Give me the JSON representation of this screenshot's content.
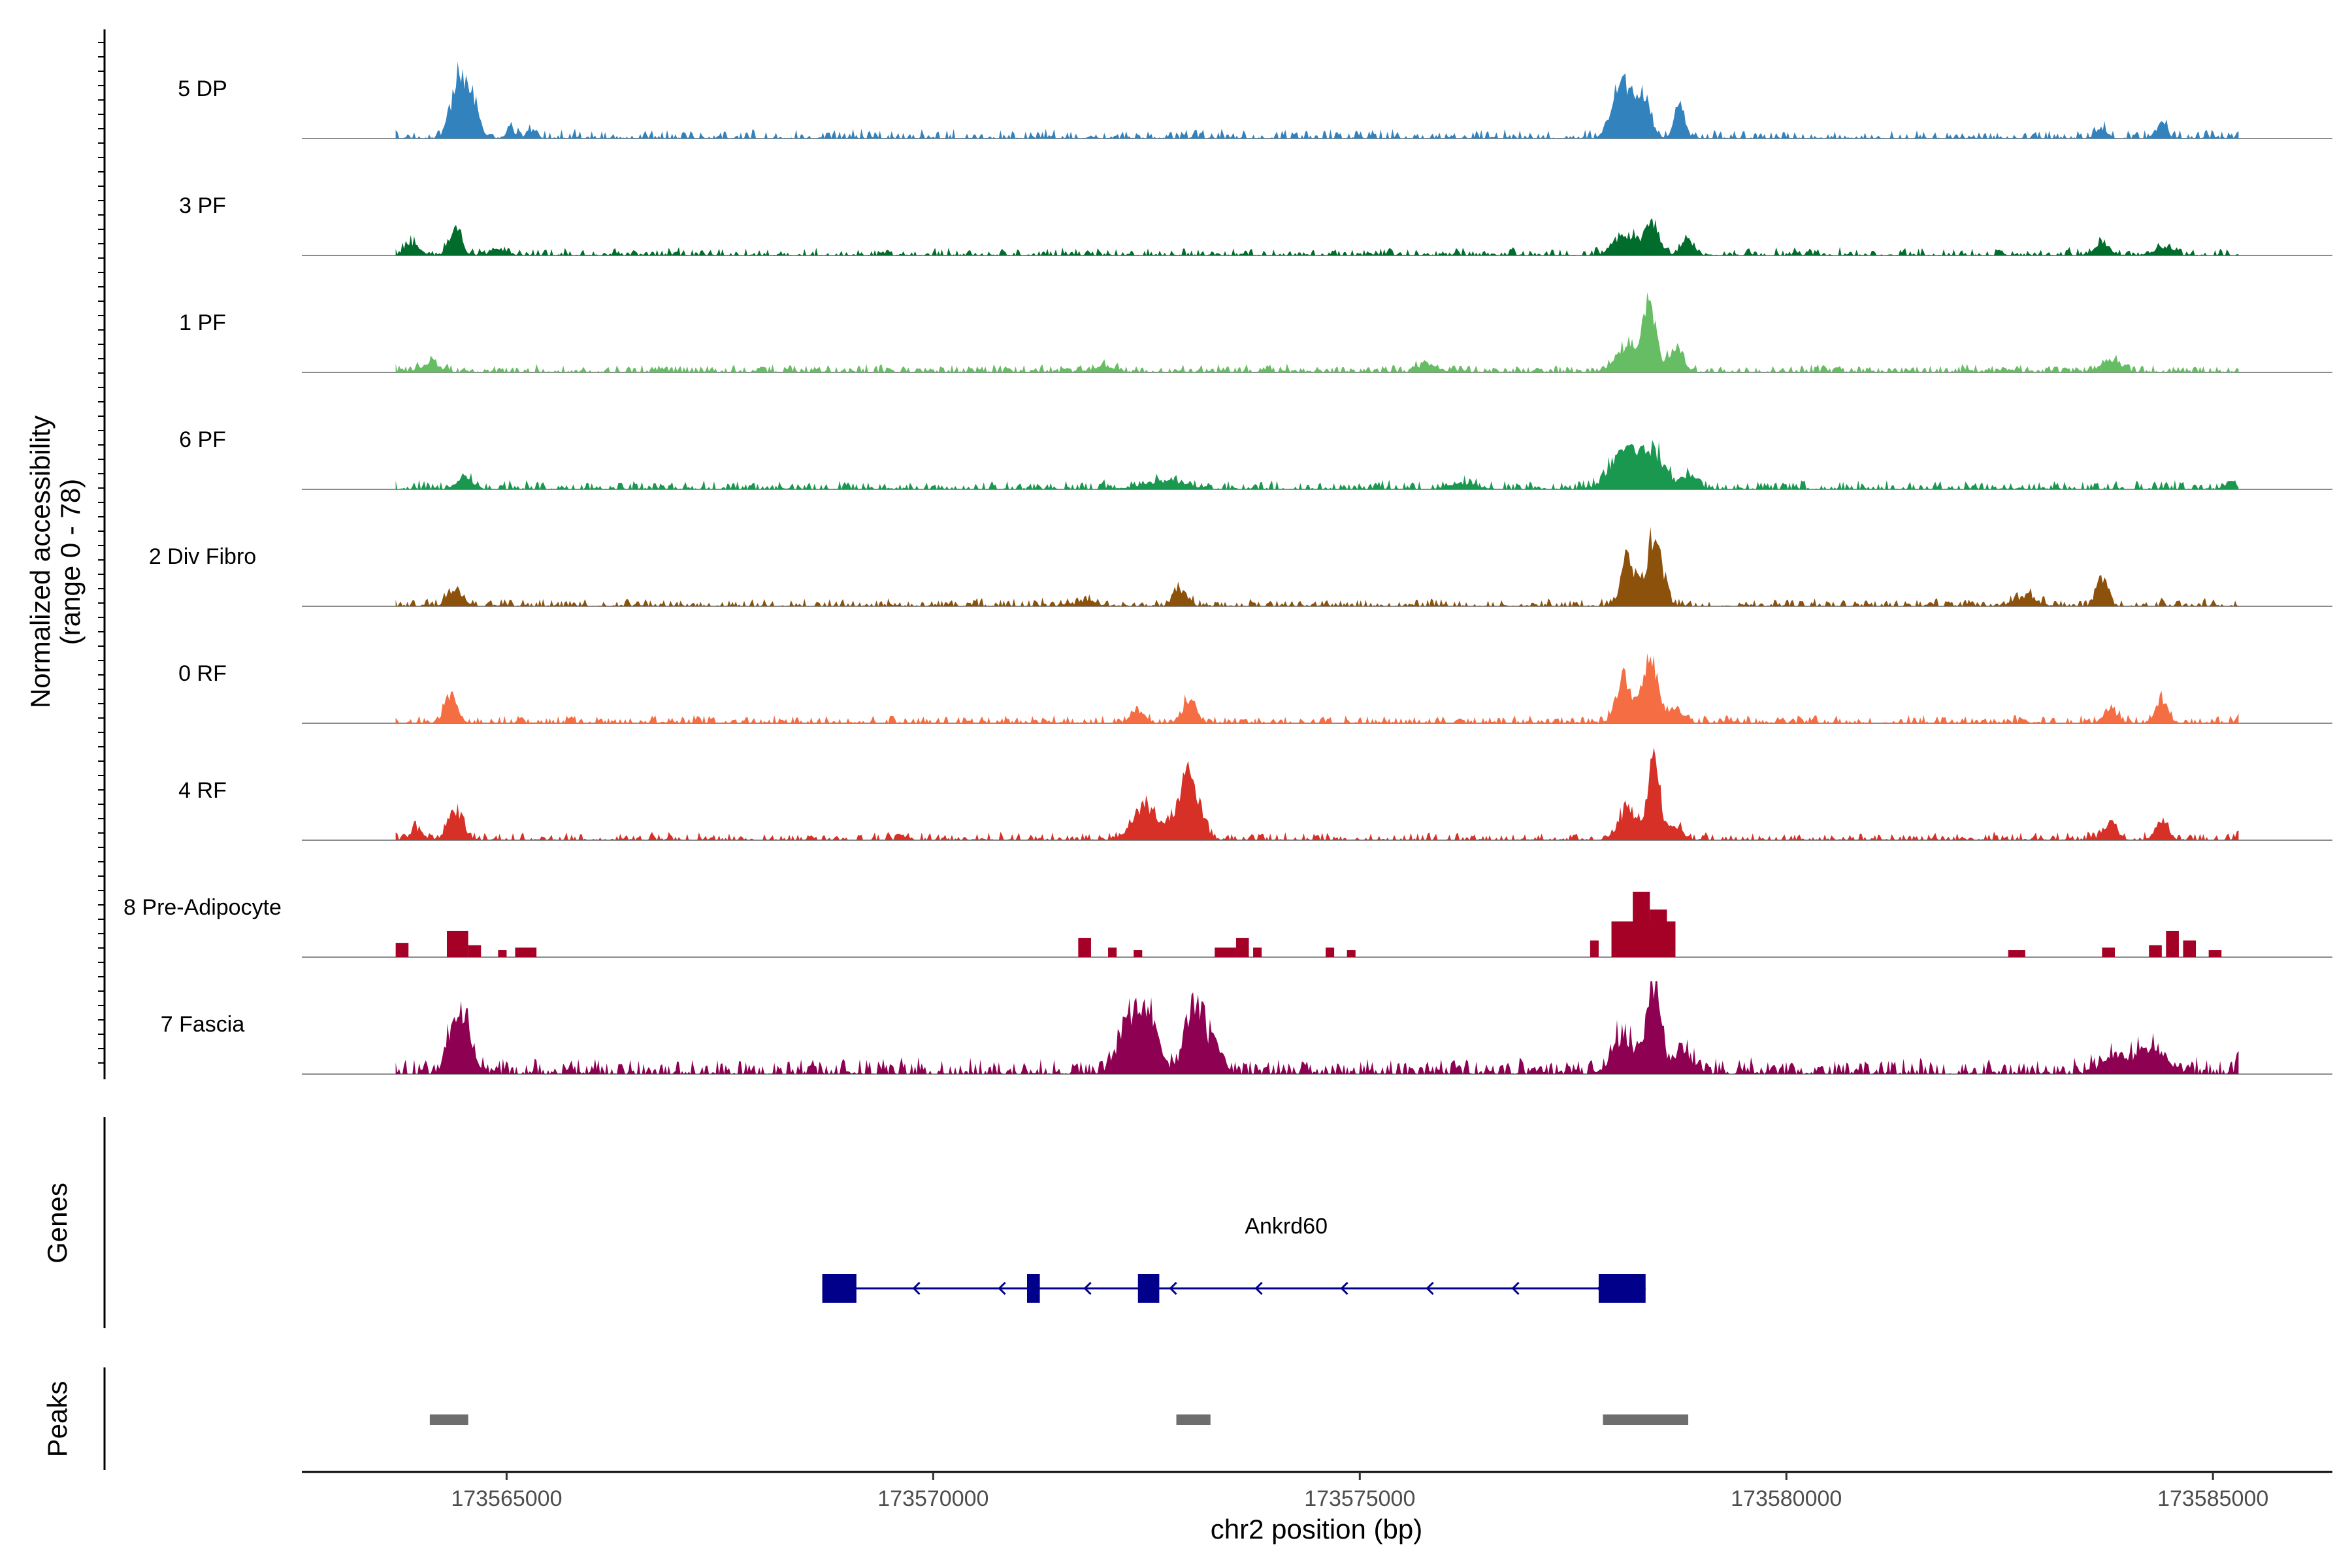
{
  "chart_data": {
    "type": "area",
    "title": "",
    "ylabel_line1": "Normalized accessibility",
    "ylabel_line2": "(range 0 - 78)",
    "y_range": [
      0,
      78
    ],
    "xlabel": "chr2 position (bp)",
    "xlim": [
      173562600,
      173586400
    ],
    "x_ticks": [
      173565000,
      173570000,
      173575000,
      173580000,
      173585000
    ],
    "x_tick_labels": [
      "173565000",
      "173570000",
      "173575000",
      "173580000",
      "173585000"
    ],
    "data_extent": [
      173563700,
      173585300
    ],
    "tracks": [
      {
        "name": "5 DP",
        "color": "#3182bd",
        "baseline": 1,
        "noise": 6,
        "peaks": [
          [
            173564440,
            50,
            90
          ],
          [
            173564600,
            28,
            80
          ],
          [
            173565050,
            5,
            60
          ],
          [
            173565300,
            5,
            60
          ],
          [
            173578050,
            50,
            100
          ],
          [
            173578300,
            38,
            90
          ],
          [
            173578750,
            30,
            60
          ],
          [
            173583700,
            9,
            60
          ],
          [
            173584400,
            12,
            60
          ]
        ]
      },
      {
        "name": "3 PF",
        "color": "#006d2c",
        "baseline": 1,
        "noise": 5,
        "peaks": [
          [
            173563900,
            10,
            80
          ],
          [
            173564400,
            22,
            70
          ],
          [
            173564900,
            6,
            80
          ],
          [
            173578100,
            18,
            120
          ],
          [
            173578420,
            24,
            90
          ],
          [
            173578850,
            14,
            70
          ],
          [
            173583700,
            10,
            90
          ],
          [
            173584400,
            7,
            90
          ]
        ]
      },
      {
        "name": "1 PF",
        "color": "#66bd63",
        "baseline": 2,
        "noise": 4,
        "peaks": [
          [
            173564100,
            7,
            120
          ],
          [
            173578400,
            58,
            70
          ],
          [
            173578150,
            22,
            140
          ],
          [
            173578700,
            18,
            90
          ],
          [
            173583800,
            8,
            120
          ],
          [
            173572000,
            5,
            120
          ],
          [
            173575800,
            6,
            120
          ]
        ]
      },
      {
        "name": "6 PF",
        "color": "#1a9850",
        "baseline": 1,
        "noise": 6,
        "peaks": [
          [
            173564500,
            10,
            90
          ],
          [
            173578100,
            35,
            160
          ],
          [
            173578450,
            30,
            120
          ],
          [
            173578850,
            12,
            100
          ],
          [
            173572700,
            6,
            250
          ],
          [
            173576200,
            5,
            150
          ],
          [
            173585200,
            6,
            60
          ]
        ]
      },
      {
        "name": "2 Div Fibro",
        "color": "#8c510a",
        "baseline": 1,
        "noise": 5,
        "peaks": [
          [
            173564400,
            16,
            80
          ],
          [
            173578450,
            62,
            90
          ],
          [
            173578150,
            40,
            80
          ],
          [
            173572900,
            14,
            80
          ],
          [
            173583700,
            24,
            60
          ],
          [
            173582800,
            8,
            120
          ],
          [
            173571800,
            5,
            100
          ]
        ]
      },
      {
        "name": "0 RF",
        "color": "#f46d43",
        "baseline": 1,
        "noise": 5,
        "peaks": [
          [
            173564350,
            20,
            80
          ],
          [
            173578400,
            60,
            80
          ],
          [
            173578100,
            36,
            90
          ],
          [
            173578700,
            12,
            90
          ],
          [
            173572400,
            10,
            80
          ],
          [
            173573000,
            18,
            80
          ],
          [
            173584400,
            18,
            70
          ],
          [
            173583800,
            10,
            80
          ],
          [
            173585300,
            8,
            25
          ]
        ]
      },
      {
        "name": "4 RF",
        "color": "#d73027",
        "baseline": 1,
        "noise": 5,
        "peaks": [
          [
            173564400,
            24,
            90
          ],
          [
            173563950,
            8,
            80
          ],
          [
            173573000,
            55,
            120
          ],
          [
            173572500,
            28,
            150
          ],
          [
            173578450,
            80,
            65
          ],
          [
            173578150,
            28,
            110
          ],
          [
            173578700,
            12,
            80
          ],
          [
            173583800,
            14,
            80
          ],
          [
            173584400,
            16,
            70
          ],
          [
            173585300,
            8,
            25
          ]
        ]
      },
      {
        "name": "8 Pre-Adipocyte",
        "color": "#a50026",
        "baseline": 0,
        "noise": 0,
        "bars": [
          [
            173563700,
            173563850,
            12
          ],
          [
            173564300,
            173564550,
            22
          ],
          [
            173564550,
            173564700,
            10
          ],
          [
            173564900,
            173565000,
            6
          ],
          [
            173565100,
            173565350,
            8
          ],
          [
            173571700,
            173571850,
            16
          ],
          [
            173572050,
            173572150,
            8
          ],
          [
            173572350,
            173572450,
            6
          ],
          [
            173573300,
            173573550,
            8
          ],
          [
            173573550,
            173573700,
            16
          ],
          [
            173573750,
            173573850,
            8
          ],
          [
            173574600,
            173574700,
            8
          ],
          [
            173574850,
            173574950,
            6
          ],
          [
            173577700,
            173577800,
            14
          ],
          [
            173577950,
            173578700,
            30
          ],
          [
            173578200,
            173578400,
            55
          ],
          [
            173578400,
            173578600,
            40
          ],
          [
            173582600,
            173582800,
            6
          ],
          [
            173583700,
            173583850,
            8
          ],
          [
            173584250,
            173584400,
            10
          ],
          [
            173584450,
            173584600,
            22
          ],
          [
            173584650,
            173584800,
            14
          ],
          [
            173584950,
            173585100,
            6
          ]
        ]
      },
      {
        "name": "7 Fascia",
        "color": "#8e0152",
        "baseline": 3,
        "noise": 9,
        "peaks": [
          [
            173564450,
            58,
            110
          ],
          [
            173572500,
            50,
            130
          ],
          [
            173572250,
            30,
            120
          ],
          [
            173573050,
            60,
            100
          ],
          [
            173573300,
            28,
            90
          ],
          [
            173578450,
            75,
            80
          ],
          [
            173578100,
            32,
            130
          ],
          [
            173578800,
            18,
            100
          ],
          [
            173584250,
            18,
            200
          ],
          [
            173583800,
            10,
            150
          ],
          [
            173585300,
            20,
            25
          ]
        ]
      }
    ],
    "genes": [
      {
        "name": "Ankrd60",
        "color": "#00008b",
        "strand": "-",
        "start": 173568700,
        "end": 173578350,
        "exons": [
          [
            173568700,
            173569100
          ],
          [
            173571100,
            173571250
          ],
          [
            173572400,
            173572650
          ],
          [
            173577800,
            173578350
          ]
        ]
      }
    ],
    "peaks_track_label": "Peaks",
    "genes_track_label": "Genes",
    "peak_regions": [
      [
        173564100,
        173564550
      ],
      [
        173572850,
        173573250
      ],
      [
        173577850,
        173578850
      ]
    ],
    "peak_color": "#6e6e6e"
  }
}
